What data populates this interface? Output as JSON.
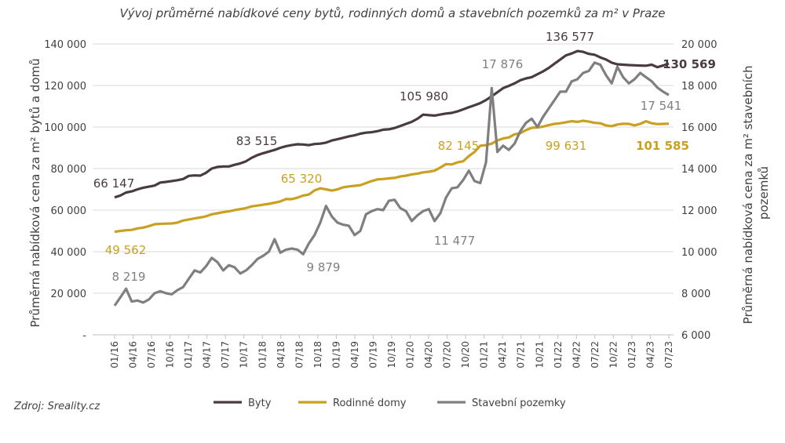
{
  "colors": {
    "byty": "#4a3b40",
    "domy": "#c9a020",
    "pozemky": "#7f7f7f",
    "grid": "#d9d9d9",
    "text": "#404040"
  },
  "chart_data": {
    "type": "line",
    "title": "Vývoj průměrné nabídkové ceny bytů, rodinných domů a stavebních pozemků za m² v Praze",
    "ylabel_left": "Průměrná nabídková cena za m² bytů a domů",
    "ylabel_right": "Průměrná nabídková cena za m² stavebních pozemků",
    "ylim_left": [
      0,
      140000
    ],
    "ylim_right": [
      6000,
      20000
    ],
    "yticks_left": [
      "-",
      "20 000",
      "40 000",
      "60 000",
      "80 000",
      "100 000",
      "120 000",
      "140 000"
    ],
    "yticks_right": [
      "6 000",
      "8 000",
      "10 000",
      "12 000",
      "14 000",
      "16 000",
      "18 000",
      "20 000"
    ],
    "grid": true,
    "legend_position": "bottom",
    "x_tick_labels": [
      "01/16",
      "04/16",
      "07/16",
      "10/16",
      "01/17",
      "04/17",
      "07/17",
      "10/17",
      "01/18",
      "04/18",
      "07/18",
      "10/18",
      "01/19",
      "04/19",
      "07/19",
      "10/19",
      "01/20",
      "04/20",
      "07/20",
      "10/20",
      "01/21",
      "04/21",
      "07/21",
      "10/21",
      "01/22",
      "04/22",
      "07/22",
      "10/22",
      "01/23",
      "04/23",
      "07/23"
    ],
    "x_start": "01/16",
    "x_end": "07/23",
    "series": [
      {
        "name": "Byty",
        "axis": "left",
        "values": [
          66147,
          67000,
          68500,
          69000,
          70000,
          70800,
          71300,
          71800,
          73300,
          73600,
          74000,
          74400,
          75000,
          76500,
          76700,
          76600,
          78000,
          80000,
          80800,
          81000,
          81000,
          81800,
          82500,
          83515,
          85200,
          86500,
          87400,
          88200,
          89000,
          90000,
          90800,
          91300,
          91700,
          91600,
          91300,
          91800,
          92000,
          92500,
          93500,
          94100,
          94800,
          95500,
          96000,
          96800,
          97300,
          97500,
          98000,
          98700,
          98900,
          99500,
          100500,
          101500,
          102500,
          104000,
          105980,
          105700,
          105500,
          106000,
          106500,
          106800,
          107500,
          108500,
          109500,
          110500,
          111500,
          113000,
          114800,
          116700,
          118700,
          119800,
          121000,
          122500,
          123400,
          124000,
          125400,
          126800,
          128500,
          130500,
          132500,
          134500,
          135400,
          136577,
          136200,
          135200,
          134800,
          133500,
          132500,
          131000,
          130200,
          130000,
          129800,
          129700,
          129600,
          129500,
          130000,
          128800,
          129600,
          130569
        ]
      },
      {
        "name": "Rodinné domy",
        "axis": "left",
        "values": [
          49562,
          50000,
          50300,
          50500,
          51200,
          51600,
          52300,
          53200,
          53400,
          53500,
          53600,
          54000,
          55000,
          55500,
          56000,
          56500,
          57000,
          58000,
          58500,
          59000,
          59400,
          60000,
          60500,
          61000,
          61800,
          62200,
          62600,
          63000,
          63600,
          64200,
          65320,
          65300,
          66000,
          67000,
          67500,
          69500,
          70500,
          70000,
          69400,
          70000,
          71000,
          71400,
          71700,
          72000,
          73000,
          74000,
          74800,
          75000,
          75300,
          75500,
          76200,
          76600,
          77200,
          77600,
          78200,
          78500,
          79000,
          80500,
          82145,
          82000,
          83000,
          83500,
          86000,
          88000,
          91000,
          91300,
          92000,
          93500,
          94500,
          95000,
          96500,
          97000,
          98500,
          99631,
          99800,
          100200,
          101000,
          101500,
          101800,
          102300,
          102800,
          102500,
          103000,
          102600,
          102000,
          101800,
          100800,
          100400,
          101200,
          101600,
          101500,
          100800,
          101500,
          102800,
          101800,
          101400,
          101500,
          101585
        ]
      },
      {
        "name": "Stavební pozemky",
        "axis": "right",
        "values": [
          7400,
          7800,
          8219,
          7600,
          7650,
          7550,
          7700,
          8000,
          8100,
          8000,
          7950,
          8150,
          8300,
          8700,
          9100,
          9000,
          9300,
          9700,
          9500,
          9100,
          9350,
          9250,
          8950,
          9100,
          9350,
          9650,
          9800,
          10000,
          10600,
          9950,
          10100,
          10150,
          10100,
          9879,
          10400,
          10800,
          11400,
          12200,
          11700,
          11400,
          11300,
          11250,
          10800,
          11000,
          11800,
          11950,
          12050,
          12000,
          12450,
          12500,
          12100,
          11950,
          11477,
          11750,
          11950,
          12050,
          11477,
          11850,
          12600,
          13050,
          13100,
          13450,
          13900,
          13400,
          13300,
          14300,
          17876,
          14800,
          15100,
          14900,
          15200,
          15800,
          16200,
          16400,
          16000,
          16500,
          16900,
          17300,
          17700,
          17700,
          18200,
          18300,
          18600,
          18700,
          19100,
          19000,
          18500,
          18100,
          18900,
          18400,
          18100,
          18300,
          18600,
          18400,
          18200,
          17900,
          17700,
          17541
        ]
      }
    ],
    "data_labels": [
      {
        "series": "Byty",
        "text": "66 147"
      },
      {
        "series": "Byty",
        "text": "83 515"
      },
      {
        "series": "Byty",
        "text": "105 980"
      },
      {
        "series": "Byty",
        "text": "136 577"
      },
      {
        "series": "Byty",
        "text": "130 569"
      },
      {
        "series": "Rodinné domy",
        "text": "49 562"
      },
      {
        "series": "Rodinné domy",
        "text": "65 320"
      },
      {
        "series": "Rodinné domy",
        "text": "82 145"
      },
      {
        "series": "Rodinné domy",
        "text": "99 631"
      },
      {
        "series": "Rodinné domy",
        "text": "101 585"
      },
      {
        "series": "Stavební pozemky",
        "text": "8 219"
      },
      {
        "series": "Stavební pozemky",
        "text": "9 879"
      },
      {
        "series": "Stavební pozemky",
        "text": "11 477"
      },
      {
        "series": "Stavební pozemky",
        "text": "17 876"
      },
      {
        "series": "Stavební pozemky",
        "text": "17 541"
      }
    ]
  },
  "source": "Zdroj: Sreality.cz"
}
